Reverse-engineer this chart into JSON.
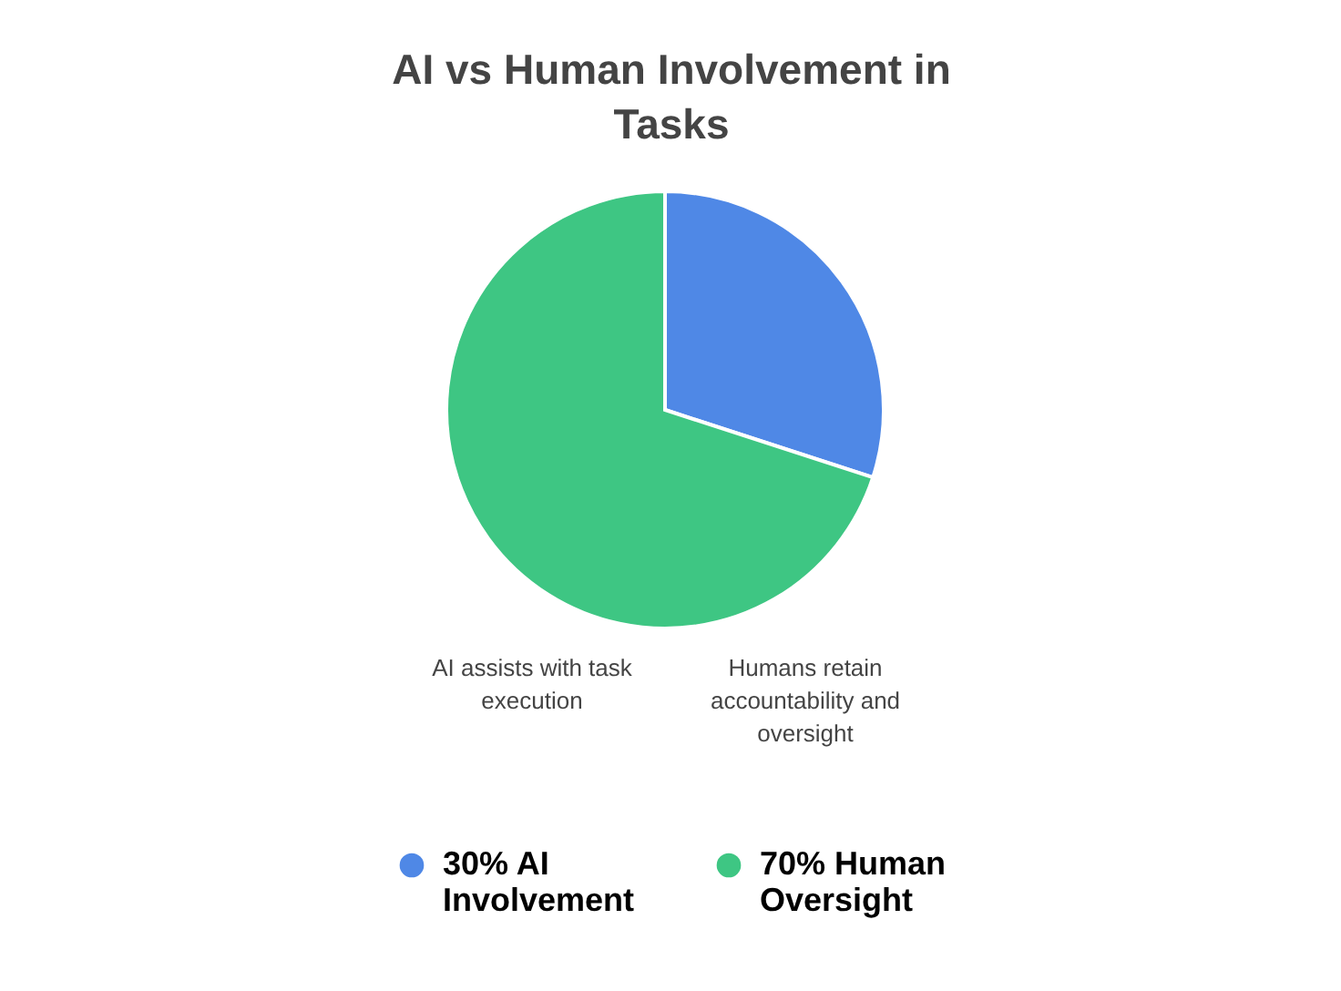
{
  "chart_data": {
    "type": "pie",
    "title": "AI vs Human Involvement in Tasks",
    "categories": [
      "30% AI Involvement",
      "70% Human Oversight"
    ],
    "values": [
      30,
      70
    ],
    "colors": [
      "#4f88e6",
      "#3ec683"
    ],
    "legend": "bottom",
    "annotations": [
      "AI assists with task execution",
      "Humans retain accountability and oversight"
    ]
  }
}
